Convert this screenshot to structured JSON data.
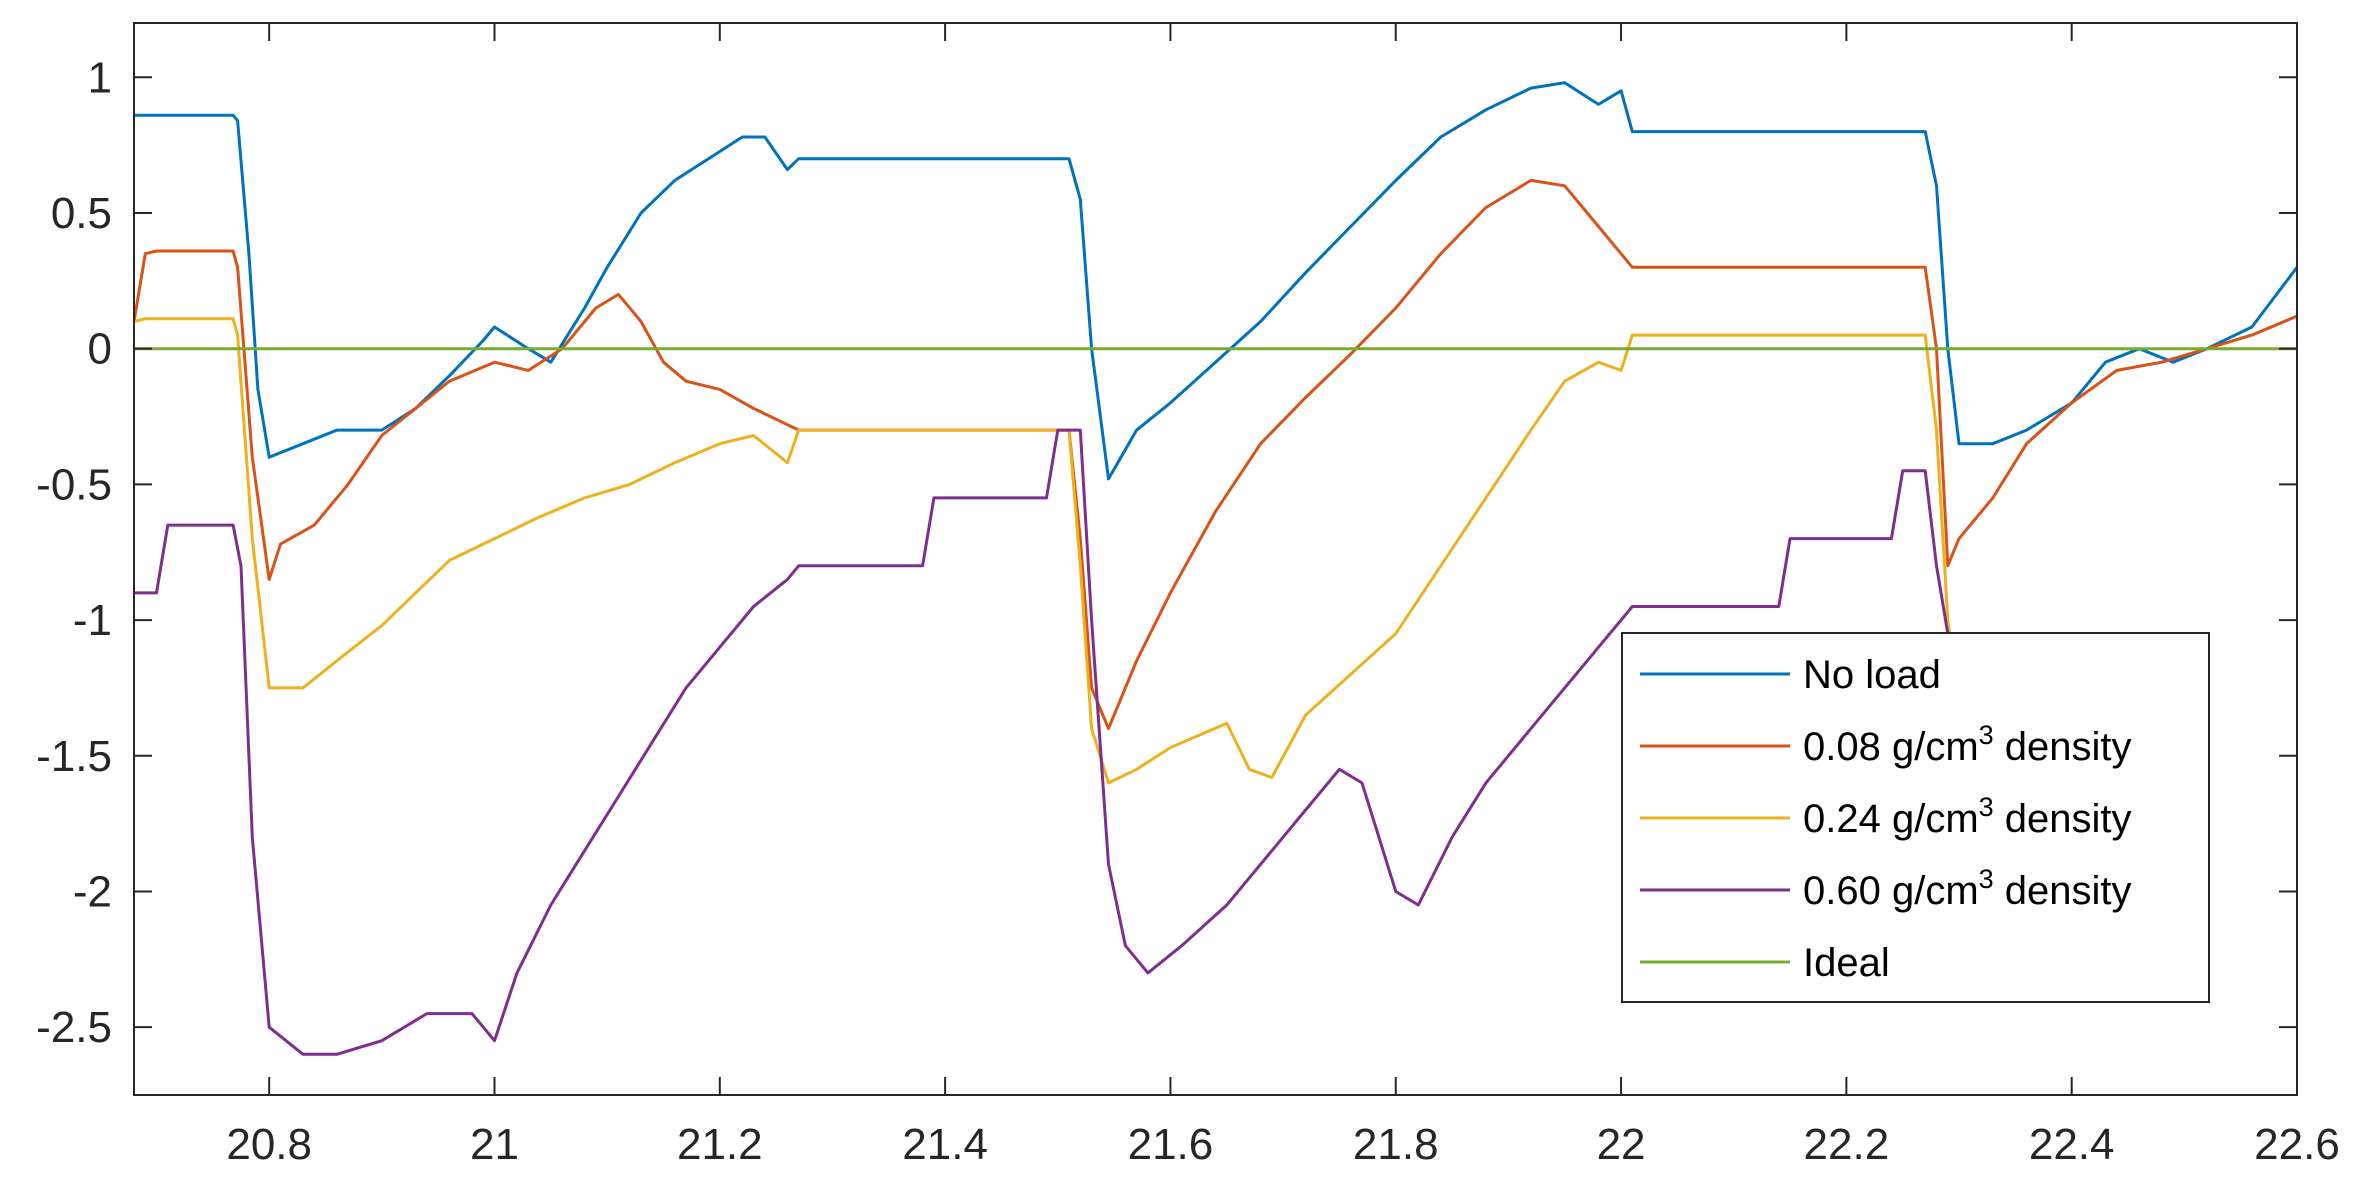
{
  "chart_data": {
    "type": "line",
    "xlim": [
      20.68,
      22.6
    ],
    "ylim": [
      -2.75,
      1.2
    ],
    "grid": false,
    "legend_placement": "bottom-right",
    "x_ticks": [
      "20.8",
      "21",
      "21.2",
      "21.4",
      "21.6",
      "21.8",
      "22",
      "22.2",
      "22.4",
      "22.6"
    ],
    "y_ticks": [
      "1",
      "0.5",
      "0",
      "-0.5",
      "-1",
      "-1.5",
      "-2",
      "-2.5"
    ],
    "series": [
      {
        "name": "No load",
        "color": "#0072BD",
        "points": [
          [
            20.68,
            0.86
          ],
          [
            20.768,
            0.86
          ],
          [
            20.772,
            0.84
          ],
          [
            20.782,
            0.35
          ],
          [
            20.79,
            -0.15
          ],
          [
            20.8,
            -0.4
          ],
          [
            20.83,
            -0.35
          ],
          [
            20.86,
            -0.3
          ],
          [
            20.9,
            -0.3
          ],
          [
            20.93,
            -0.22
          ],
          [
            20.96,
            -0.1
          ],
          [
            20.99,
            0.03
          ],
          [
            21.0,
            0.08
          ],
          [
            21.03,
            0.0
          ],
          [
            21.05,
            -0.05
          ],
          [
            21.08,
            0.15
          ],
          [
            21.1,
            0.3
          ],
          [
            21.13,
            0.5
          ],
          [
            21.16,
            0.62
          ],
          [
            21.19,
            0.7
          ],
          [
            21.22,
            0.78
          ],
          [
            21.24,
            0.78
          ],
          [
            21.26,
            0.66
          ],
          [
            21.27,
            0.7
          ],
          [
            21.51,
            0.7
          ],
          [
            21.52,
            0.55
          ],
          [
            21.53,
            0.0
          ],
          [
            21.545,
            -0.48
          ],
          [
            21.57,
            -0.3
          ],
          [
            21.6,
            -0.2
          ],
          [
            21.64,
            -0.05
          ],
          [
            21.68,
            0.1
          ],
          [
            21.72,
            0.28
          ],
          [
            21.76,
            0.45
          ],
          [
            21.8,
            0.62
          ],
          [
            21.84,
            0.78
          ],
          [
            21.88,
            0.88
          ],
          [
            21.92,
            0.96
          ],
          [
            21.95,
            0.98
          ],
          [
            21.98,
            0.9
          ],
          [
            22.0,
            0.95
          ],
          [
            22.01,
            0.8
          ],
          [
            22.27,
            0.8
          ],
          [
            22.28,
            0.6
          ],
          [
            22.29,
            0.0
          ],
          [
            22.3,
            -0.35
          ],
          [
            22.33,
            -0.35
          ],
          [
            22.36,
            -0.3
          ],
          [
            22.4,
            -0.2
          ],
          [
            22.43,
            -0.05
          ],
          [
            22.46,
            0.0
          ],
          [
            22.49,
            -0.05
          ],
          [
            22.52,
            0.0
          ],
          [
            22.56,
            0.08
          ],
          [
            22.6,
            0.3
          ]
        ]
      },
      {
        "name": "0.08 g/cm3 density",
        "color": "#D95319",
        "points": [
          [
            20.68,
            0.1
          ],
          [
            20.69,
            0.35
          ],
          [
            20.7,
            0.36
          ],
          [
            20.768,
            0.36
          ],
          [
            20.772,
            0.3
          ],
          [
            20.785,
            -0.4
          ],
          [
            20.8,
            -0.85
          ],
          [
            20.81,
            -0.72
          ],
          [
            20.84,
            -0.65
          ],
          [
            20.87,
            -0.5
          ],
          [
            20.9,
            -0.32
          ],
          [
            20.93,
            -0.22
          ],
          [
            20.96,
            -0.12
          ],
          [
            21.0,
            -0.05
          ],
          [
            21.03,
            -0.08
          ],
          [
            21.06,
            0.0
          ],
          [
            21.09,
            0.15
          ],
          [
            21.11,
            0.2
          ],
          [
            21.13,
            0.1
          ],
          [
            21.15,
            -0.05
          ],
          [
            21.17,
            -0.12
          ],
          [
            21.2,
            -0.15
          ],
          [
            21.23,
            -0.22
          ],
          [
            21.26,
            -0.28
          ],
          [
            21.27,
            -0.3
          ],
          [
            21.51,
            -0.3
          ],
          [
            21.52,
            -0.7
          ],
          [
            21.53,
            -1.25
          ],
          [
            21.545,
            -1.4
          ],
          [
            21.57,
            -1.15
          ],
          [
            21.6,
            -0.9
          ],
          [
            21.64,
            -0.6
          ],
          [
            21.68,
            -0.35
          ],
          [
            21.72,
            -0.18
          ],
          [
            21.76,
            -0.02
          ],
          [
            21.8,
            0.15
          ],
          [
            21.84,
            0.35
          ],
          [
            21.88,
            0.52
          ],
          [
            21.92,
            0.62
          ],
          [
            21.95,
            0.6
          ],
          [
            21.98,
            0.45
          ],
          [
            22.0,
            0.35
          ],
          [
            22.01,
            0.3
          ],
          [
            22.27,
            0.3
          ],
          [
            22.28,
            0.0
          ],
          [
            22.29,
            -0.8
          ],
          [
            22.3,
            -0.7
          ],
          [
            22.33,
            -0.55
          ],
          [
            22.36,
            -0.35
          ],
          [
            22.4,
            -0.2
          ],
          [
            22.44,
            -0.08
          ],
          [
            22.48,
            -0.05
          ],
          [
            22.52,
            0.0
          ],
          [
            22.56,
            0.05
          ],
          [
            22.6,
            0.12
          ]
        ]
      },
      {
        "name": "0.24 g/cm3 density",
        "color": "#EDB120",
        "points": [
          [
            20.68,
            0.1
          ],
          [
            20.69,
            0.11
          ],
          [
            20.768,
            0.11
          ],
          [
            20.772,
            0.05
          ],
          [
            20.785,
            -0.7
          ],
          [
            20.8,
            -1.25
          ],
          [
            20.83,
            -1.25
          ],
          [
            20.86,
            -1.15
          ],
          [
            20.9,
            -1.02
          ],
          [
            20.93,
            -0.9
          ],
          [
            20.96,
            -0.78
          ],
          [
            21.0,
            -0.7
          ],
          [
            21.04,
            -0.62
          ],
          [
            21.08,
            -0.55
          ],
          [
            21.12,
            -0.5
          ],
          [
            21.16,
            -0.42
          ],
          [
            21.2,
            -0.35
          ],
          [
            21.23,
            -0.32
          ],
          [
            21.26,
            -0.42
          ],
          [
            21.27,
            -0.3
          ],
          [
            21.51,
            -0.3
          ],
          [
            21.52,
            -0.8
          ],
          [
            21.53,
            -1.4
          ],
          [
            21.545,
            -1.6
          ],
          [
            21.57,
            -1.55
          ],
          [
            21.6,
            -1.47
          ],
          [
            21.65,
            -1.38
          ],
          [
            21.67,
            -1.55
          ],
          [
            21.69,
            -1.58
          ],
          [
            21.72,
            -1.35
          ],
          [
            21.76,
            -1.2
          ],
          [
            21.8,
            -1.05
          ],
          [
            21.84,
            -0.8
          ],
          [
            21.88,
            -0.55
          ],
          [
            21.92,
            -0.3
          ],
          [
            21.95,
            -0.12
          ],
          [
            21.98,
            -0.05
          ],
          [
            22.0,
            -0.08
          ],
          [
            22.01,
            0.05
          ],
          [
            22.27,
            0.05
          ],
          [
            22.28,
            -0.3
          ],
          [
            22.29,
            -1.0
          ],
          [
            22.3,
            -1.3
          ]
        ]
      },
      {
        "name": "0.60 g/cm3 density",
        "color": "#7E2F8E",
        "points": [
          [
            20.68,
            -0.9
          ],
          [
            20.7,
            -0.9
          ],
          [
            20.71,
            -0.65
          ],
          [
            20.768,
            -0.65
          ],
          [
            20.775,
            -0.8
          ],
          [
            20.785,
            -1.8
          ],
          [
            20.8,
            -2.5
          ],
          [
            20.83,
            -2.6
          ],
          [
            20.86,
            -2.6
          ],
          [
            20.9,
            -2.55
          ],
          [
            20.94,
            -2.45
          ],
          [
            20.98,
            -2.45
          ],
          [
            21.0,
            -2.55
          ],
          [
            21.02,
            -2.3
          ],
          [
            21.05,
            -2.05
          ],
          [
            21.08,
            -1.85
          ],
          [
            21.11,
            -1.65
          ],
          [
            21.14,
            -1.45
          ],
          [
            21.17,
            -1.25
          ],
          [
            21.2,
            -1.1
          ],
          [
            21.23,
            -0.95
          ],
          [
            21.26,
            -0.85
          ],
          [
            21.27,
            -0.8
          ],
          [
            21.38,
            -0.8
          ],
          [
            21.39,
            -0.55
          ],
          [
            21.49,
            -0.55
          ],
          [
            21.5,
            -0.3
          ],
          [
            21.52,
            -0.3
          ],
          [
            21.53,
            -1.0
          ],
          [
            21.545,
            -1.9
          ],
          [
            21.56,
            -2.2
          ],
          [
            21.58,
            -2.3
          ],
          [
            21.61,
            -2.2
          ],
          [
            21.65,
            -2.05
          ],
          [
            21.68,
            -1.9
          ],
          [
            21.72,
            -1.7
          ],
          [
            21.75,
            -1.55
          ],
          [
            21.77,
            -1.6
          ],
          [
            21.8,
            -2.0
          ],
          [
            21.82,
            -2.05
          ],
          [
            21.85,
            -1.8
          ],
          [
            21.88,
            -1.6
          ],
          [
            21.92,
            -1.4
          ],
          [
            21.96,
            -1.2
          ],
          [
            21.99,
            -1.05
          ],
          [
            22.0,
            -1.0
          ],
          [
            22.01,
            -0.95
          ],
          [
            22.14,
            -0.95
          ],
          [
            22.15,
            -0.7
          ],
          [
            22.24,
            -0.7
          ],
          [
            22.25,
            -0.45
          ],
          [
            22.27,
            -0.45
          ],
          [
            22.28,
            -0.8
          ],
          [
            22.29,
            -1.05
          ]
        ]
      },
      {
        "name": "Ideal",
        "color": "#77AC30",
        "points": [
          [
            20.68,
            0
          ],
          [
            22.6,
            0
          ]
        ]
      }
    ]
  },
  "legend": {
    "entries": [
      {
        "text": "No load",
        "base": "No load",
        "sup": "",
        "tail": "",
        "color": "#0072BD"
      },
      {
        "text": "0.08 g/cm3 density",
        "base": "0.08 g/cm",
        "sup": "3",
        "tail": " density",
        "color": "#D95319"
      },
      {
        "text": "0.24 g/cm3 density",
        "base": "0.24 g/cm",
        "sup": "3",
        "tail": " density",
        "color": "#EDB120"
      },
      {
        "text": "0.60 g/cm3 density",
        "base": "0.60 g/cm",
        "sup": "3",
        "tail": " density",
        "color": "#7E2F8E"
      },
      {
        "text": "Ideal",
        "base": "Ideal",
        "sup": "",
        "tail": "",
        "color": "#77AC30"
      }
    ]
  }
}
